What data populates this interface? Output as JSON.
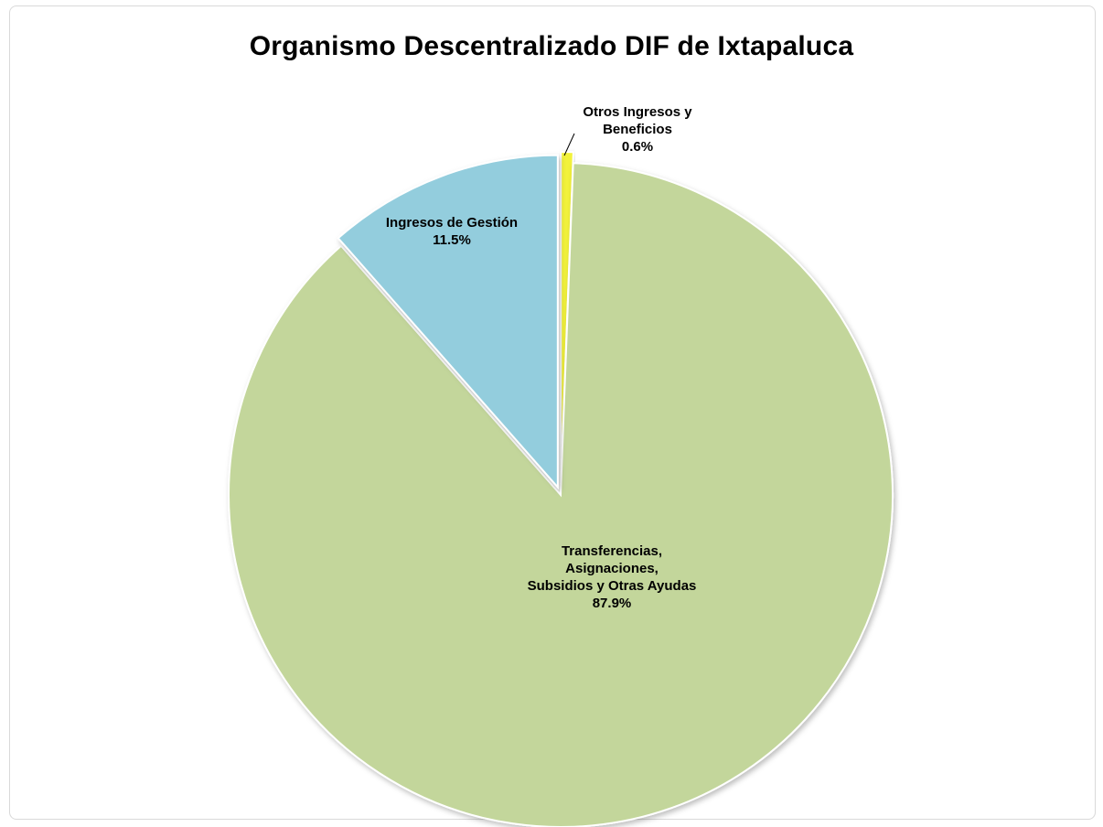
{
  "chart_data": {
    "type": "pie",
    "title": "Organismo Descentralizado DIF de Ixtapaluca",
    "slices": [
      {
        "name": "Otros Ingresos y Beneficios",
        "label_lines": [
          "Otros Ingresos y",
          "Beneficios"
        ],
        "value": 0.6,
        "value_label": "0.6%",
        "color": "#f2f23a"
      },
      {
        "name": "Transferencias, Asignaciones, Subsidios y Otras Ayudas",
        "label_lines": [
          "Transferencias,",
          "Asignaciones,",
          "Subsidios y Otras Ayudas"
        ],
        "value": 87.9,
        "value_label": "87.9%",
        "color": "#c3d69b"
      },
      {
        "name": "Ingresos de Gestión",
        "label_lines": [
          "Ingresos de Gestión"
        ],
        "value": 11.5,
        "value_label": "11.5%",
        "color": "#93cddd"
      }
    ],
    "start_angle": "12 o'clock",
    "direction": "clockwise",
    "legend": "none",
    "labels": "inside"
  }
}
